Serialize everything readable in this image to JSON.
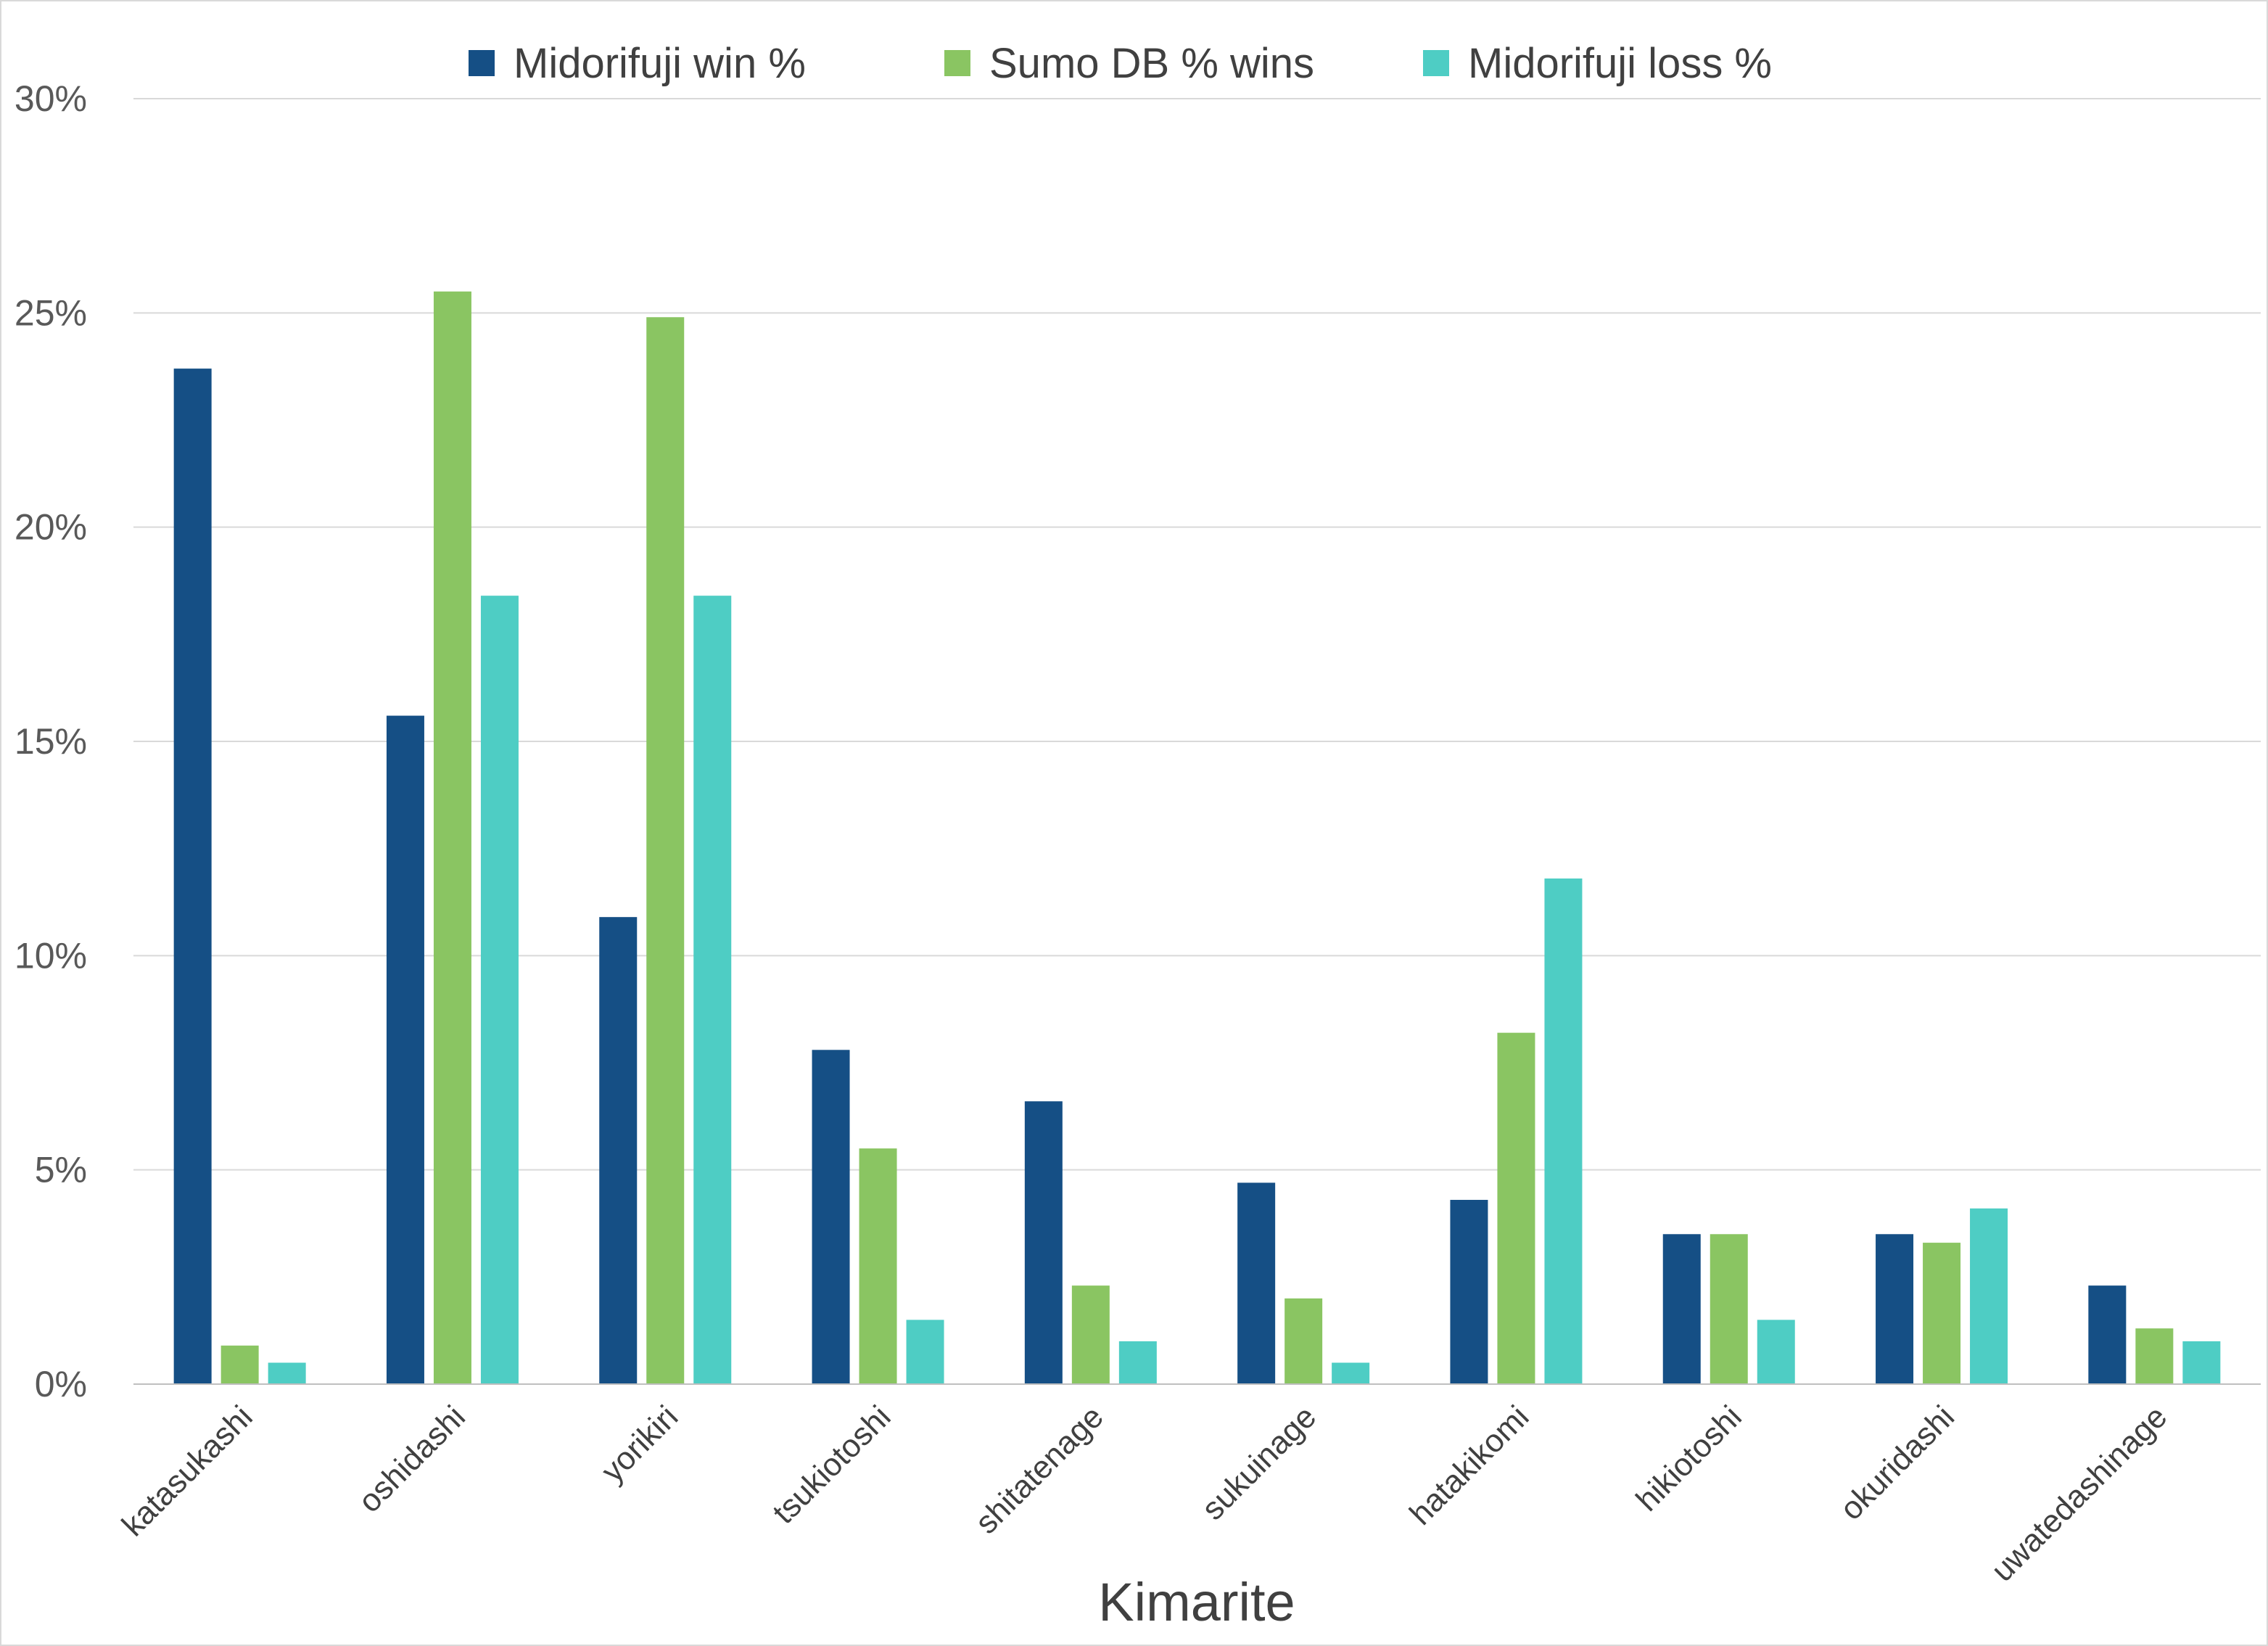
{
  "chart_data": {
    "type": "bar",
    "title": "",
    "xlabel": "Kimarite",
    "ylabel": "",
    "ylim": [
      0,
      30
    ],
    "y_ticks": [
      0,
      5,
      10,
      15,
      20,
      25,
      30
    ],
    "y_tick_labels": [
      "0%",
      "5%",
      "10%",
      "15%",
      "20%",
      "25%",
      "30%"
    ],
    "grid": true,
    "legend_position": "top",
    "categories": [
      "katasukashi",
      "oshidashi",
      "yorikiri",
      "tsukiotoshi",
      "shitatenage",
      "sukuinage",
      "hatakikomi",
      "hikiotoshi",
      "okuridashi",
      "uwatedashinage"
    ],
    "series": [
      {
        "name": "Midorifuji win %",
        "color": "#154f85",
        "values": [
          23.7,
          15.6,
          10.9,
          7.8,
          6.6,
          4.7,
          4.3,
          3.5,
          3.5,
          2.3
        ]
      },
      {
        "name": "Sumo DB % wins",
        "color": "#8ac562",
        "values": [
          0.9,
          25.5,
          24.9,
          5.5,
          2.3,
          2.0,
          8.2,
          3.5,
          3.3,
          1.3
        ]
      },
      {
        "name": "Midorifuji loss %",
        "color": "#4ecdc4",
        "values": [
          0.5,
          18.4,
          18.4,
          1.5,
          1.0,
          0.5,
          11.8,
          1.5,
          4.1,
          1.0
        ]
      }
    ]
  }
}
